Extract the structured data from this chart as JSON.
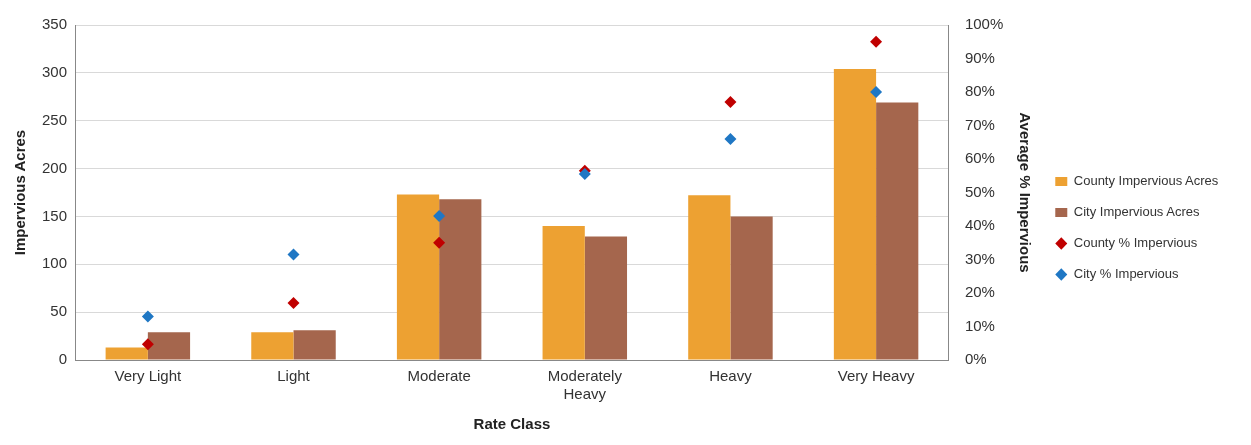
{
  "chart_data": {
    "type": "bar",
    "xlabel": "Rate Class",
    "ylabel": "Impervious Acres",
    "y2label": "Average % Impervious",
    "categories": [
      "Very Light",
      "Light",
      "Moderate",
      "Moderately Heavy",
      "Heavy",
      "Very Heavy"
    ],
    "series": [
      {
        "name": "County Impervious Acres",
        "color": "#eda132",
        "values": [
          13,
          29,
          173,
          140,
          172,
          304
        ]
      },
      {
        "name": "City Impervious Acres",
        "color": "#a5664d",
        "values": [
          29,
          31,
          168,
          129,
          150,
          269
        ]
      },
      {
        "name": "County % Impervious",
        "type": "scatter",
        "axis": "y2",
        "color": "#c00000",
        "values": [
          4.7,
          17,
          35,
          56.5,
          77,
          95
        ]
      },
      {
        "name": "City % Impervious",
        "type": "scatter",
        "axis": "y2",
        "color": "#1f77c4",
        "values": [
          13,
          31.5,
          43,
          55.5,
          66,
          80
        ]
      }
    ],
    "ylim": [
      0,
      350
    ],
    "yticks": [
      0,
      50,
      100,
      150,
      200,
      250,
      300,
      350
    ],
    "y2lim": [
      0,
      100
    ],
    "y2ticks": [
      {
        "value": 0,
        "label": "0%"
      },
      {
        "value": 10,
        "label": "10%"
      },
      {
        "value": 20,
        "label": "20%"
      },
      {
        "value": 30,
        "label": "30%"
      },
      {
        "value": 40,
        "label": "40%"
      },
      {
        "value": 50,
        "label": "50%"
      },
      {
        "value": 60,
        "label": "60%"
      },
      {
        "value": 70,
        "label": "70%"
      },
      {
        "value": 80,
        "label": "80%"
      },
      {
        "value": 90,
        "label": "90%"
      },
      {
        "value": 100,
        "label": "100%"
      }
    ],
    "grid": "y",
    "legend": "right",
    "marker": "diamond"
  }
}
